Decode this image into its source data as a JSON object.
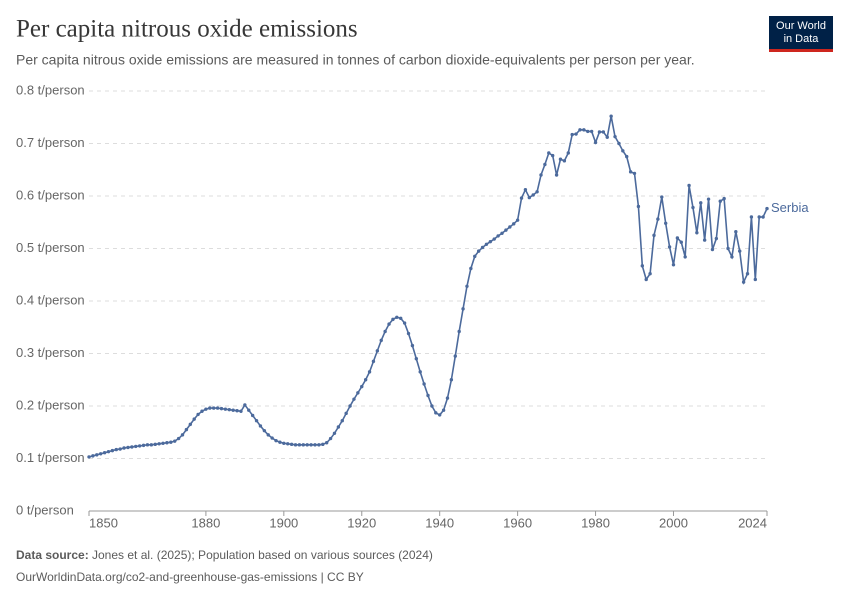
{
  "chart_data": {
    "type": "line",
    "title": "Per capita nitrous oxide emissions",
    "subtitle": "Per capita nitrous oxide emissions are measured in tonnes of carbon dioxide-equivalents per person per year.",
    "logo": [
      "Our World",
      "in Data"
    ],
    "source_label": "Data source:",
    "source": "Jones et al. (2025); Population based on various sources (2024)",
    "footer": "OurWorldinData.org/co2-and-greenhouse-gas-emissions | CC BY",
    "xlim": [
      1850,
      2024
    ],
    "xticks": [
      1850,
      1880,
      1900,
      1920,
      1940,
      1960,
      1980,
      2000,
      2024
    ],
    "ylim": [
      0,
      0.8
    ],
    "yticks": [
      {
        "value": 0,
        "label": "0 t/person"
      },
      {
        "value": 0.1,
        "label": "0.1 t/person"
      },
      {
        "value": 0.2,
        "label": "0.2 t/person"
      },
      {
        "value": 0.3,
        "label": "0.3 t/person"
      },
      {
        "value": 0.4,
        "label": "0.4 t/person"
      },
      {
        "value": 0.5,
        "label": "0.5 t/person"
      },
      {
        "value": 0.6,
        "label": "0.6 t/person"
      },
      {
        "value": 0.7,
        "label": "0.7 t/person"
      },
      {
        "value": 0.8,
        "label": "0.8 t/person"
      }
    ],
    "grid": true,
    "x": [
      1850,
      1851,
      1852,
      1853,
      1854,
      1855,
      1856,
      1857,
      1858,
      1859,
      1860,
      1861,
      1862,
      1863,
      1864,
      1865,
      1866,
      1867,
      1868,
      1869,
      1870,
      1871,
      1872,
      1873,
      1874,
      1875,
      1876,
      1877,
      1878,
      1879,
      1880,
      1881,
      1882,
      1883,
      1884,
      1885,
      1886,
      1887,
      1888,
      1889,
      1890,
      1891,
      1892,
      1893,
      1894,
      1895,
      1896,
      1897,
      1898,
      1899,
      1900,
      1901,
      1902,
      1903,
      1904,
      1905,
      1906,
      1907,
      1908,
      1909,
      1910,
      1911,
      1912,
      1913,
      1914,
      1915,
      1916,
      1917,
      1918,
      1919,
      1920,
      1921,
      1922,
      1923,
      1924,
      1925,
      1926,
      1927,
      1928,
      1929,
      1930,
      1931,
      1932,
      1933,
      1934,
      1935,
      1936,
      1937,
      1938,
      1939,
      1940,
      1941,
      1942,
      1943,
      1944,
      1945,
      1946,
      1947,
      1948,
      1949,
      1950,
      1951,
      1952,
      1953,
      1954,
      1955,
      1956,
      1957,
      1958,
      1959,
      1960,
      1961,
      1962,
      1963,
      1964,
      1965,
      1966,
      1967,
      1968,
      1969,
      1970,
      1971,
      1972,
      1973,
      1974,
      1975,
      1976,
      1977,
      1978,
      1979,
      1980,
      1981,
      1982,
      1983,
      1984,
      1985,
      1986,
      1987,
      1988,
      1989,
      1990,
      1991,
      1992,
      1993,
      1994,
      1995,
      1996,
      1997,
      1998,
      1999,
      2000,
      2001,
      2002,
      2003,
      2004,
      2005,
      2006,
      2007,
      2008,
      2009,
      2010,
      2011,
      2012,
      2013,
      2014,
      2015,
      2016,
      2017,
      2018,
      2019,
      2020,
      2021,
      2022,
      2023,
      2024
    ],
    "series": [
      {
        "name": "Serbia",
        "color": "#4c6a9c",
        "values": [
          0.103,
          0.105,
          0.107,
          0.109,
          0.111,
          0.113,
          0.115,
          0.117,
          0.118,
          0.12,
          0.121,
          0.122,
          0.123,
          0.124,
          0.125,
          0.126,
          0.126,
          0.127,
          0.128,
          0.129,
          0.13,
          0.131,
          0.133,
          0.138,
          0.145,
          0.155,
          0.165,
          0.175,
          0.184,
          0.19,
          0.194,
          0.196,
          0.196,
          0.196,
          0.195,
          0.194,
          0.193,
          0.192,
          0.191,
          0.19,
          0.202,
          0.192,
          0.182,
          0.172,
          0.162,
          0.153,
          0.145,
          0.139,
          0.134,
          0.131,
          0.129,
          0.128,
          0.127,
          0.126,
          0.126,
          0.126,
          0.126,
          0.126,
          0.126,
          0.126,
          0.127,
          0.13,
          0.138,
          0.148,
          0.16,
          0.172,
          0.186,
          0.2,
          0.213,
          0.225,
          0.237,
          0.25,
          0.265,
          0.285,
          0.305,
          0.325,
          0.342,
          0.356,
          0.365,
          0.369,
          0.367,
          0.358,
          0.338,
          0.315,
          0.29,
          0.265,
          0.242,
          0.22,
          0.2,
          0.187,
          0.183,
          0.192,
          0.215,
          0.25,
          0.295,
          0.342,
          0.385,
          0.428,
          0.462,
          0.485,
          0.495,
          0.502,
          0.508,
          0.513,
          0.518,
          0.524,
          0.529,
          0.535,
          0.541,
          0.547,
          0.554,
          0.596,
          0.612,
          0.597,
          0.602,
          0.608,
          0.64,
          0.66,
          0.682,
          0.677,
          0.64,
          0.67,
          0.667,
          0.682,
          0.717,
          0.718,
          0.726,
          0.726,
          0.723,
          0.723,
          0.702,
          0.722,
          0.722,
          0.712,
          0.752,
          0.713,
          0.7,
          0.686,
          0.675,
          0.646,
          0.643,
          0.58,
          0.467,
          0.441,
          0.452,
          0.525,
          0.556,
          0.598,
          0.548,
          0.503,
          0.469,
          0.52,
          0.512,
          0.484,
          0.62,
          0.578,
          0.53,
          0.587,
          0.516,
          0.594,
          0.498,
          0.519,
          0.59,
          0.595,
          0.5,
          0.484,
          0.532,
          0.495,
          0.436,
          0.452,
          0.56,
          0.441,
          0.56,
          0.56,
          0.576
        ]
      }
    ]
  }
}
